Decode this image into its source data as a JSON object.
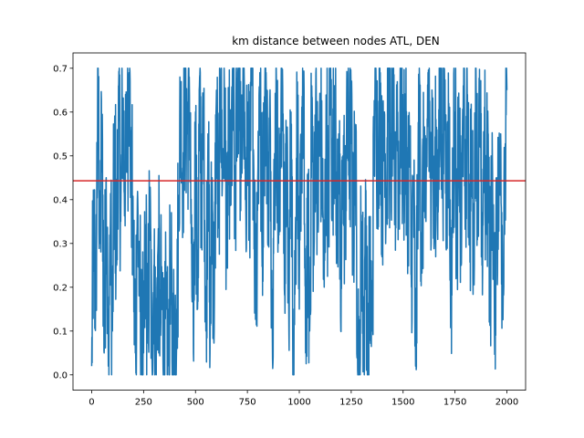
{
  "chart_data": {
    "type": "line",
    "title": "km distance between nodes ATL, DEN",
    "xlabel": "",
    "ylabel": "",
    "xlim": [
      -90,
      2090
    ],
    "ylim": [
      -0.035,
      0.735
    ],
    "x_ticks": [
      0,
      250,
      500,
      750,
      1000,
      1250,
      1500,
      1750,
      2000
    ],
    "y_ticks": [
      0.0,
      0.1,
      0.2,
      0.3,
      0.4,
      0.5,
      0.6,
      0.7
    ],
    "y_tick_labels": [
      "0.0",
      "0.1",
      "0.2",
      "0.3",
      "0.4",
      "0.5",
      "0.6",
      "0.7"
    ],
    "grid": false,
    "legend": "none",
    "series": [
      {
        "color": "#1f77b4",
        "x_start": 0,
        "x_end": 2000,
        "n_points": 2001,
        "sampled": [
          [
            0,
            0.02
          ],
          [
            10,
            0.37
          ],
          [
            20,
            0.15
          ],
          [
            30,
            0.68
          ],
          [
            40,
            0.3
          ],
          [
            50,
            0.58
          ],
          [
            60,
            0.05
          ],
          [
            70,
            0.45
          ],
          [
            80,
            0.02
          ],
          [
            90,
            0.35
          ],
          [
            100,
            0.1
          ],
          [
            110,
            0.55
          ],
          [
            120,
            0.25
          ],
          [
            130,
            0.66
          ],
          [
            140,
            0.35
          ],
          [
            150,
            0.62
          ],
          [
            160,
            0.4
          ],
          [
            170,
            0.55
          ],
          [
            180,
            0.69
          ],
          [
            190,
            0.45
          ],
          [
            200,
            0.3
          ],
          [
            210,
            0.05
          ],
          [
            220,
            0.4
          ],
          [
            230,
            0.2
          ],
          [
            240,
            0.15
          ],
          [
            250,
            0.05
          ],
          [
            260,
            0.3
          ],
          [
            270,
            0.1
          ],
          [
            280,
            0.38
          ],
          [
            290,
            0.05
          ],
          [
            300,
            0.25
          ],
          [
            310,
            0.02
          ],
          [
            320,
            0.3
          ],
          [
            330,
            0.1
          ],
          [
            340,
            0.2
          ],
          [
            350,
            0.02
          ],
          [
            360,
            0.15
          ],
          [
            370,
            0.05
          ],
          [
            380,
            0.22
          ],
          [
            390,
            0.02
          ],
          [
            400,
            0.1
          ],
          [
            410,
            0.15
          ],
          [
            420,
            0.4
          ],
          [
            430,
            0.64
          ],
          [
            440,
            0.4
          ],
          [
            450,
            0.69
          ],
          [
            460,
            0.55
          ],
          [
            470,
            0.68
          ],
          [
            480,
            0.3
          ],
          [
            490,
            0.05
          ],
          [
            500,
            0.6
          ],
          [
            510,
            0.15
          ],
          [
            520,
            0.68
          ],
          [
            530,
            0.35
          ],
          [
            540,
            0.62
          ],
          [
            550,
            0.1
          ],
          [
            560,
            0.55
          ],
          [
            570,
            0.05
          ],
          [
            580,
            0.45
          ],
          [
            590,
            0.1
          ],
          [
            600,
            0.62
          ],
          [
            610,
            0.35
          ],
          [
            620,
            0.68
          ],
          [
            630,
            0.45
          ],
          [
            640,
            0.63
          ],
          [
            650,
            0.3
          ],
          [
            660,
            0.55
          ],
          [
            670,
            0.4
          ],
          [
            680,
            0.69
          ],
          [
            690,
            0.35
          ],
          [
            700,
            0.62
          ],
          [
            710,
            0.7
          ],
          [
            720,
            0.45
          ],
          [
            730,
            0.69
          ],
          [
            740,
            0.4
          ],
          [
            750,
            0.6
          ],
          [
            760,
            0.35
          ],
          [
            770,
            0.69
          ],
          [
            780,
            0.5
          ],
          [
            790,
            0.17
          ],
          [
            800,
            0.45
          ],
          [
            810,
            0.69
          ],
          [
            820,
            0.3
          ],
          [
            830,
            0.55
          ],
          [
            840,
            0.69
          ],
          [
            850,
            0.35
          ],
          [
            860,
            0.6
          ],
          [
            870,
            0.1
          ],
          [
            880,
            0.45
          ],
          [
            890,
            0.65
          ],
          [
            900,
            0.3
          ],
          [
            910,
            0.55
          ],
          [
            920,
            0.66
          ],
          [
            930,
            0.2
          ],
          [
            940,
            0.5
          ],
          [
            950,
            0.1
          ],
          [
            960,
            0.6
          ],
          [
            970,
            0.02
          ],
          [
            980,
            0.25
          ],
          [
            990,
            0.65
          ],
          [
            1000,
            0.15
          ],
          [
            1010,
            0.55
          ],
          [
            1020,
            0.68
          ],
          [
            1030,
            0.05
          ],
          [
            1040,
            0.4
          ],
          [
            1050,
            0.1
          ],
          [
            1060,
            0.66
          ],
          [
            1070,
            0.25
          ],
          [
            1080,
            0.69
          ],
          [
            1090,
            0.35
          ],
          [
            1100,
            0.62
          ],
          [
            1110,
            0.45
          ],
          [
            1120,
            0.2
          ],
          [
            1130,
            0.6
          ],
          [
            1140,
            0.35
          ],
          [
            1150,
            0.69
          ],
          [
            1160,
            0.45
          ],
          [
            1170,
            0.66
          ],
          [
            1180,
            0.3
          ],
          [
            1190,
            0.55
          ],
          [
            1200,
            0.1
          ],
          [
            1210,
            0.5
          ],
          [
            1220,
            0.35
          ],
          [
            1230,
            0.63
          ],
          [
            1240,
            0.45
          ],
          [
            1250,
            0.6
          ],
          [
            1260,
            0.3
          ],
          [
            1270,
            0.5
          ],
          [
            1280,
            0.1
          ],
          [
            1290,
            0.02
          ],
          [
            1300,
            0.35
          ],
          [
            1310,
            0.05
          ],
          [
            1320,
            0.4
          ],
          [
            1330,
            0.02
          ],
          [
            1340,
            0.25
          ],
          [
            1350,
            0.1
          ],
          [
            1360,
            0.55
          ],
          [
            1370,
            0.66
          ],
          [
            1380,
            0.4
          ],
          [
            1390,
            0.69
          ],
          [
            1400,
            0.35
          ],
          [
            1410,
            0.6
          ],
          [
            1420,
            0.4
          ],
          [
            1430,
            0.69
          ],
          [
            1440,
            0.45
          ],
          [
            1450,
            0.62
          ],
          [
            1460,
            0.35
          ],
          [
            1470,
            0.66
          ],
          [
            1480,
            0.4
          ],
          [
            1490,
            0.69
          ],
          [
            1500,
            0.45
          ],
          [
            1510,
            0.62
          ],
          [
            1520,
            0.35
          ],
          [
            1530,
            0.55
          ],
          [
            1540,
            0.2
          ],
          [
            1550,
            0.45
          ],
          [
            1560,
            0.02
          ],
          [
            1570,
            0.35
          ],
          [
            1580,
            0.66
          ],
          [
            1590,
            0.25
          ],
          [
            1600,
            0.55
          ],
          [
            1610,
            0.35
          ],
          [
            1620,
            0.69
          ],
          [
            1630,
            0.45
          ],
          [
            1640,
            0.63
          ],
          [
            1650,
            0.3
          ],
          [
            1660,
            0.55
          ],
          [
            1670,
            0.4
          ],
          [
            1680,
            0.7
          ],
          [
            1690,
            0.45
          ],
          [
            1700,
            0.66
          ],
          [
            1710,
            0.35
          ],
          [
            1720,
            0.62
          ],
          [
            1730,
            0.15
          ],
          [
            1740,
            0.45
          ],
          [
            1750,
            0.6
          ],
          [
            1760,
            0.3
          ],
          [
            1770,
            0.55
          ],
          [
            1780,
            0.25
          ],
          [
            1790,
            0.66
          ],
          [
            1800,
            0.4
          ],
          [
            1810,
            0.64
          ],
          [
            1820,
            0.35
          ],
          [
            1830,
            0.5
          ],
          [
            1840,
            0.28
          ],
          [
            1850,
            0.69
          ],
          [
            1860,
            0.4
          ],
          [
            1870,
            0.6
          ],
          [
            1880,
            0.25
          ],
          [
            1890,
            0.55
          ],
          [
            1900,
            0.35
          ],
          [
            1910,
            0.55
          ],
          [
            1920,
            0.15
          ],
          [
            1930,
            0.5
          ],
          [
            1940,
            0.1
          ],
          [
            1950,
            0.45
          ],
          [
            1960,
            0.35
          ],
          [
            1970,
            0.55
          ],
          [
            1980,
            0.2
          ],
          [
            1990,
            0.4
          ],
          [
            2000,
            0.65
          ]
        ]
      }
    ],
    "reference_line": {
      "orientation": "horizontal",
      "y": 0.443,
      "color": "#d62728"
    }
  }
}
